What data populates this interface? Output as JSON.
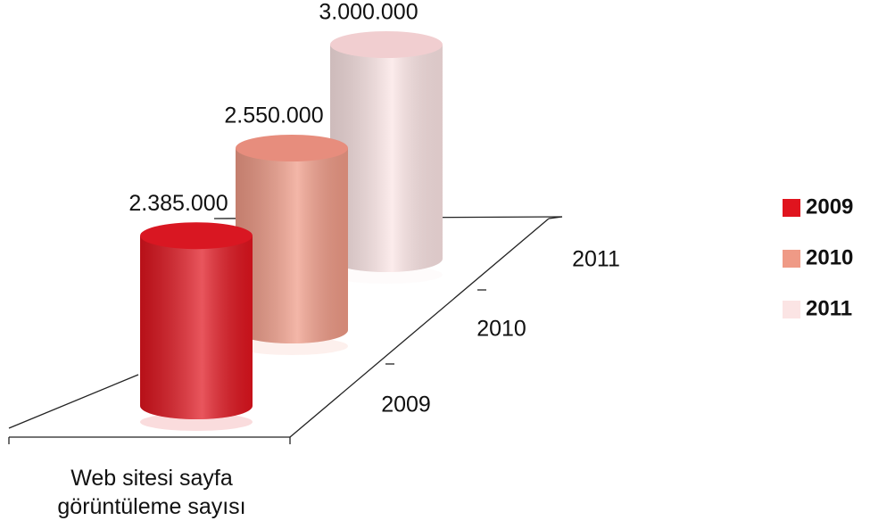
{
  "chart_data": {
    "type": "bar3d",
    "categories": [
      "Web sitesi sayfa görüntüleme sayısı"
    ],
    "series": [
      {
        "name": "2009",
        "color": "#e0141e",
        "values": [
          2385000
        ],
        "value_labels": [
          "2.385.000"
        ]
      },
      {
        "name": "2010",
        "color": "#ef9a86",
        "values": [
          2550000
        ],
        "value_labels": [
          "2.550.000"
        ]
      },
      {
        "name": "2011",
        "color": "#fbe4e4",
        "values": [
          3000000
        ],
        "value_labels": [
          "3.000.000"
        ]
      }
    ],
    "legend": "right"
  }
}
